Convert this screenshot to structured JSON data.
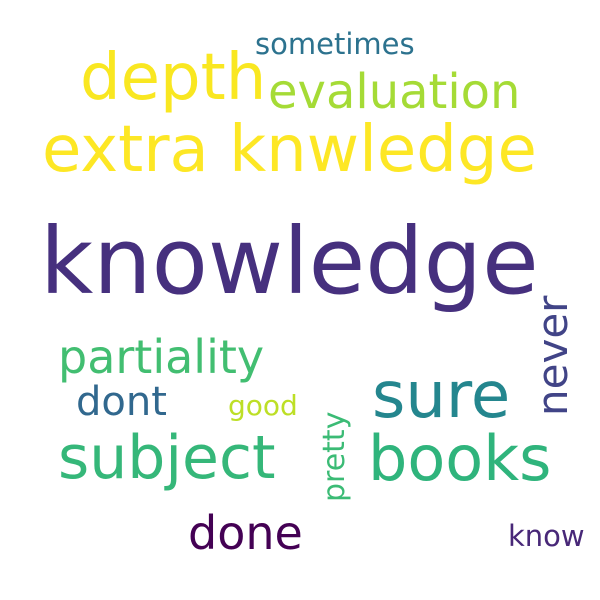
{
  "words": {
    "knowledge": {
      "text": "knowledge",
      "color": "#46307e"
    },
    "extra_knwledge": {
      "text": "extra knwledge",
      "color": "#fde725"
    },
    "depth": {
      "text": "depth",
      "color": "#f9e721"
    },
    "evaluation": {
      "text": "evaluation",
      "color": "#a5db36"
    },
    "sometimes": {
      "text": "sometimes",
      "color": "#2c728e"
    },
    "partiality": {
      "text": "partiality",
      "color": "#42be71"
    },
    "sure": {
      "text": "sure",
      "color": "#24868e"
    },
    "never": {
      "text": "never",
      "color": "#414487"
    },
    "dont": {
      "text": "dont",
      "color": "#31688e"
    },
    "good": {
      "text": "good",
      "color": "#bddf26"
    },
    "subject": {
      "text": "subject",
      "color": "#35b779"
    },
    "books": {
      "text": "books",
      "color": "#2fb47c"
    },
    "pretty": {
      "text": "pretty",
      "color": "#3bbb75"
    },
    "done": {
      "text": "done",
      "color": "#440154"
    },
    "know": {
      "text": "know",
      "color": "#482878"
    }
  }
}
